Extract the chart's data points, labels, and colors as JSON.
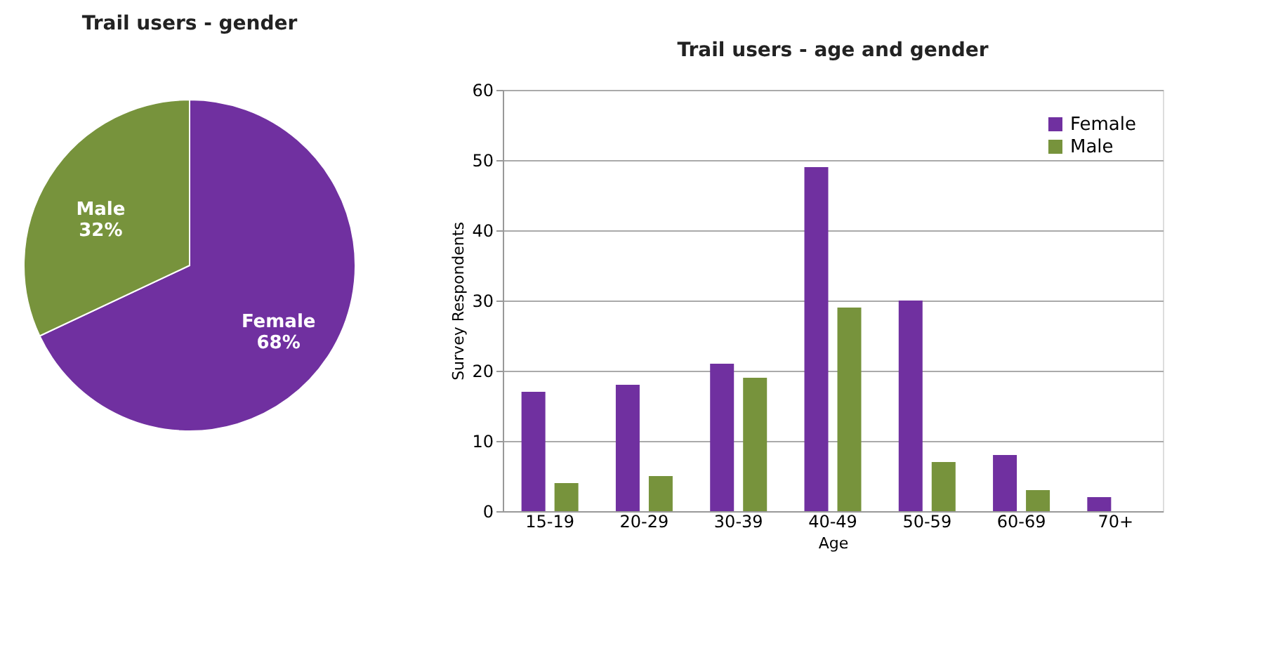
{
  "chart_data": [
    {
      "type": "pie",
      "title": "Trail users - gender",
      "categories": [
        "Female",
        "Male"
      ],
      "values": [
        68,
        32
      ],
      "colors": [
        "#7030a0",
        "#77933c"
      ],
      "value_labels": [
        "68%",
        "32%"
      ],
      "legend": false
    },
    {
      "type": "bar",
      "title": "Trail users - age and gender",
      "xlabel": "Age",
      "ylabel": "Survey Respondents",
      "categories": [
        "15-19",
        "20-29",
        "30-39",
        "40-49",
        "50-59",
        "60-69",
        "70+"
      ],
      "series": [
        {
          "name": "Female",
          "color": "#7030a0",
          "values": [
            17,
            18,
            21,
            49,
            30,
            8,
            2
          ]
        },
        {
          "name": "Male",
          "color": "#77933c",
          "values": [
            4,
            5,
            19,
            29,
            7,
            3,
            null
          ]
        }
      ],
      "ylim": [
        0,
        60
      ],
      "yticks": [
        0,
        10,
        20,
        30,
        40,
        50,
        60
      ],
      "grid": "y",
      "legend": "top right"
    }
  ]
}
